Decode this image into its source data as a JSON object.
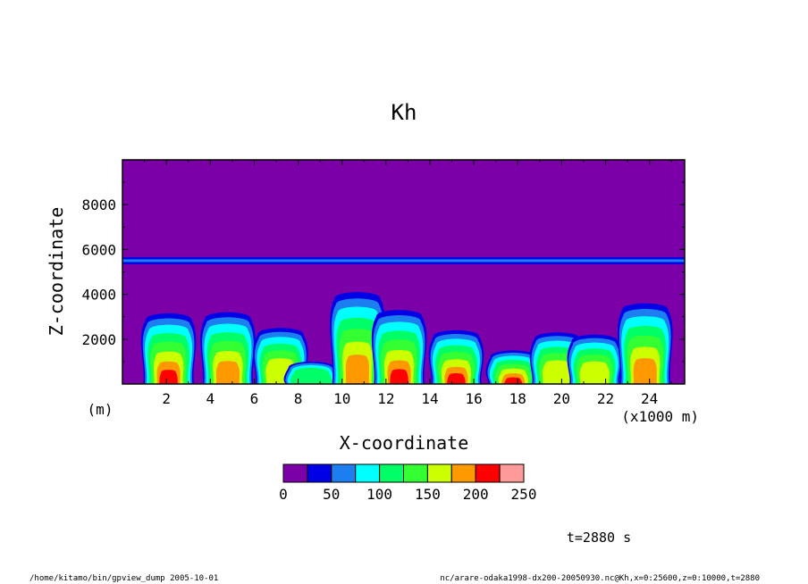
{
  "chart_data": {
    "type": "heatmap",
    "title": "Kh",
    "xlabel": "X-coordinate",
    "ylabel": "Z-coordinate",
    "x_units_label": "(x1000 m)",
    "y_units_label": "(m)",
    "xlim": [
      0,
      25600
    ],
    "ylim": [
      0,
      10000
    ],
    "x_ticks": [
      2,
      4,
      6,
      8,
      10,
      12,
      14,
      16,
      18,
      20,
      22,
      24
    ],
    "y_ticks": [
      2000,
      4000,
      6000,
      8000
    ],
    "colorbar": {
      "levels": [
        0,
        25,
        50,
        75,
        100,
        125,
        150,
        175,
        200,
        225,
        250
      ],
      "tick_labels": [
        "0",
        "50",
        "100",
        "150",
        "200",
        "250"
      ],
      "colors": [
        "#7b00a8",
        "#0000e6",
        "#1d7ef0",
        "#00ffff",
        "#00ff66",
        "#33ff33",
        "#ccff00",
        "#ff9900",
        "#ff0000",
        "#ff9a9a"
      ]
    },
    "background_value": 12,
    "layer": {
      "z": 5500,
      "value": 70
    },
    "plumes": [
      {
        "x": 2100,
        "top": 3150,
        "value": 230
      },
      {
        "x": 4800,
        "top": 3200,
        "value": 210
      },
      {
        "x": 7200,
        "top": 2500,
        "value": 170
      },
      {
        "x": 8600,
        "top": 1000,
        "value": 120
      },
      {
        "x": 10700,
        "top": 4100,
        "value": 200
      },
      {
        "x": 12600,
        "top": 3300,
        "value": 220
      },
      {
        "x": 15200,
        "top": 2400,
        "value": 215
      },
      {
        "x": 17800,
        "top": 1500,
        "value": 230
      },
      {
        "x": 19800,
        "top": 2300,
        "value": 185
      },
      {
        "x": 21500,
        "top": 2200,
        "value": 170
      },
      {
        "x": 23800,
        "top": 3600,
        "value": 210
      }
    ],
    "time_label": "t=2880 s",
    "footer_left": "/home/kitamo/bin/gpview_dump  2005-10-01",
    "footer_right": "nc/arare-odaka1998-dx200-20050930.nc@Kh,x=0:25600,z=0:10000,t=2880"
  }
}
